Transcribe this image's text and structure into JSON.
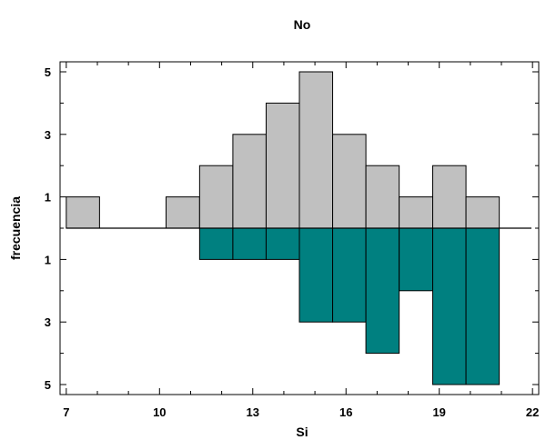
{
  "chart_data": {
    "type": "bar",
    "subtype": "back-to-back histogram",
    "title": "No",
    "xlabel": "Si",
    "ylabel": "frecuencia",
    "xlim": [
      6.8,
      22.2
    ],
    "x_ticks": [
      7,
      10,
      13,
      16,
      19,
      22
    ],
    "y_ticks_top": [
      1,
      3,
      5
    ],
    "y_ticks_bottom": [
      1,
      3,
      5
    ],
    "ylim_top": [
      0,
      5
    ],
    "ylim_bottom": [
      0,
      5
    ],
    "bin_edges": [
      7,
      8.07,
      9.14,
      10.21,
      11.29,
      12.36,
      13.43,
      14.5,
      15.57,
      16.64,
      17.71,
      18.79,
      19.86,
      20.93
    ],
    "series": [
      {
        "name": "No",
        "position": "top",
        "color": "#c0c0c0",
        "values": [
          1,
          0,
          0,
          1,
          2,
          3,
          4,
          5,
          3,
          2,
          1,
          2,
          1
        ]
      },
      {
        "name": "Si",
        "position": "bottom",
        "color": "#008080",
        "values": [
          0,
          0,
          0,
          0,
          1,
          1,
          1,
          3,
          3,
          4,
          2,
          5,
          5
        ]
      }
    ],
    "grid": false,
    "legend": "none"
  }
}
